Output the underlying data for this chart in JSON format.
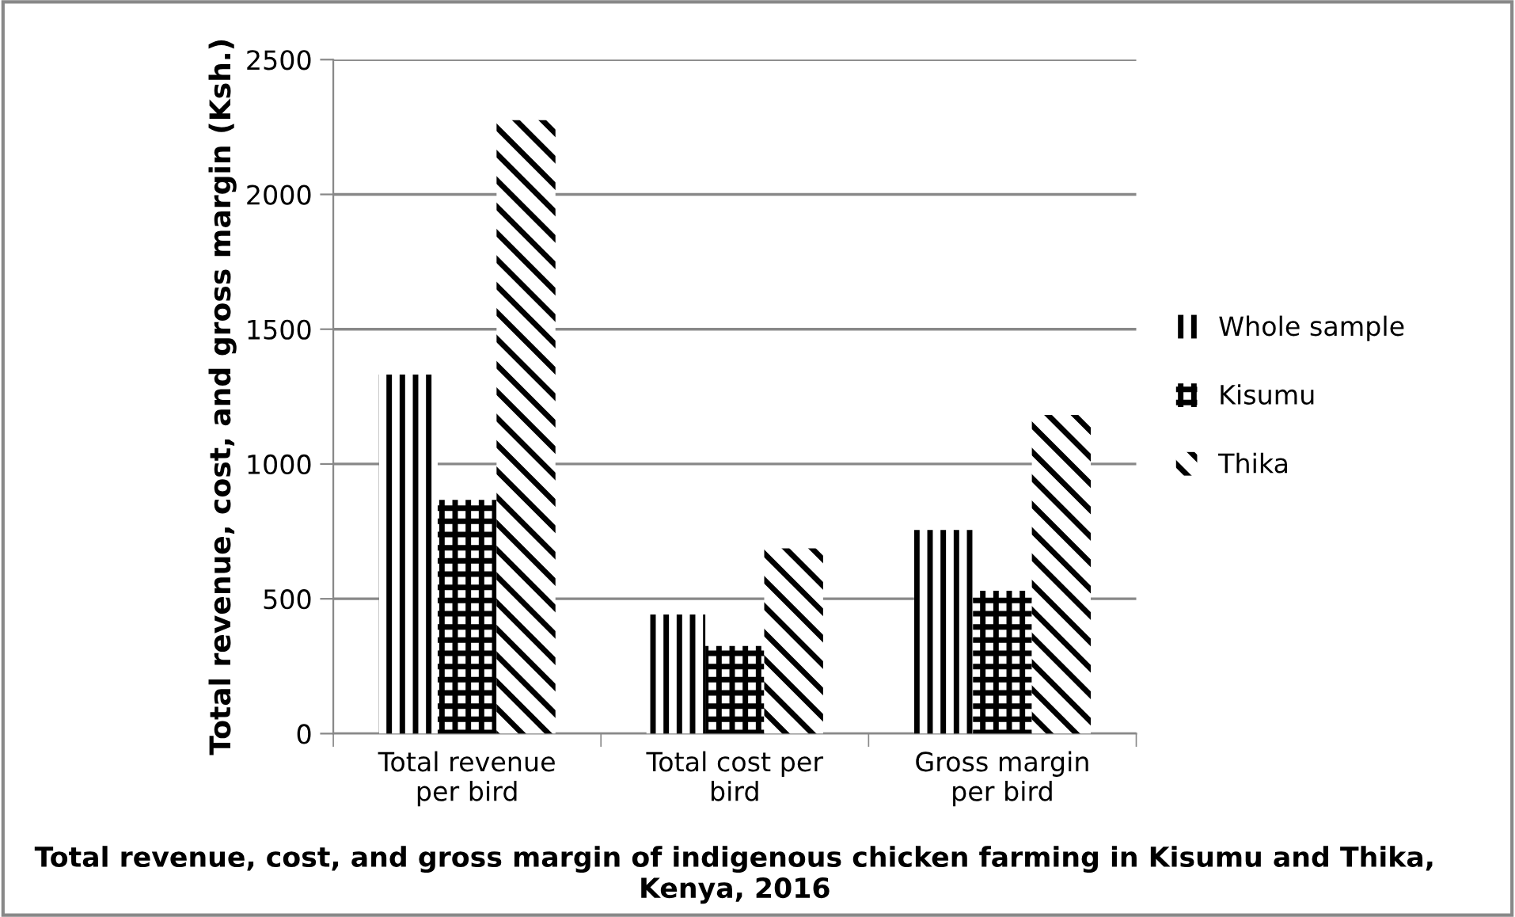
{
  "chart_data": {
    "type": "bar",
    "xlabel": "Total revenue, cost, and gross margin of indigenous chicken farming in Kisumu and Thika, Kenya, 2016",
    "ylabel": "Total revenue, cost, and gross margin (Ksh.)",
    "categories": [
      "Total revenue\nper bird",
      "Total cost per\nbird",
      "Gross margin\nper bird"
    ],
    "series": [
      {
        "name": "Whole sample",
        "color": "#000000",
        "values": [
          1332,
          442,
          755
        ]
      },
      {
        "name": "Kisumu",
        "color": "#000000",
        "values": [
          867,
          325,
          530
        ]
      },
      {
        "name": "Thika",
        "color": "#000000",
        "values": [
          2275,
          687,
          1182
        ]
      }
    ],
    "ylim": [
      0,
      2500
    ],
    "yticks": [
      0,
      500,
      1000,
      1500,
      2000,
      2500
    ],
    "grid": "y",
    "legend": "right"
  }
}
